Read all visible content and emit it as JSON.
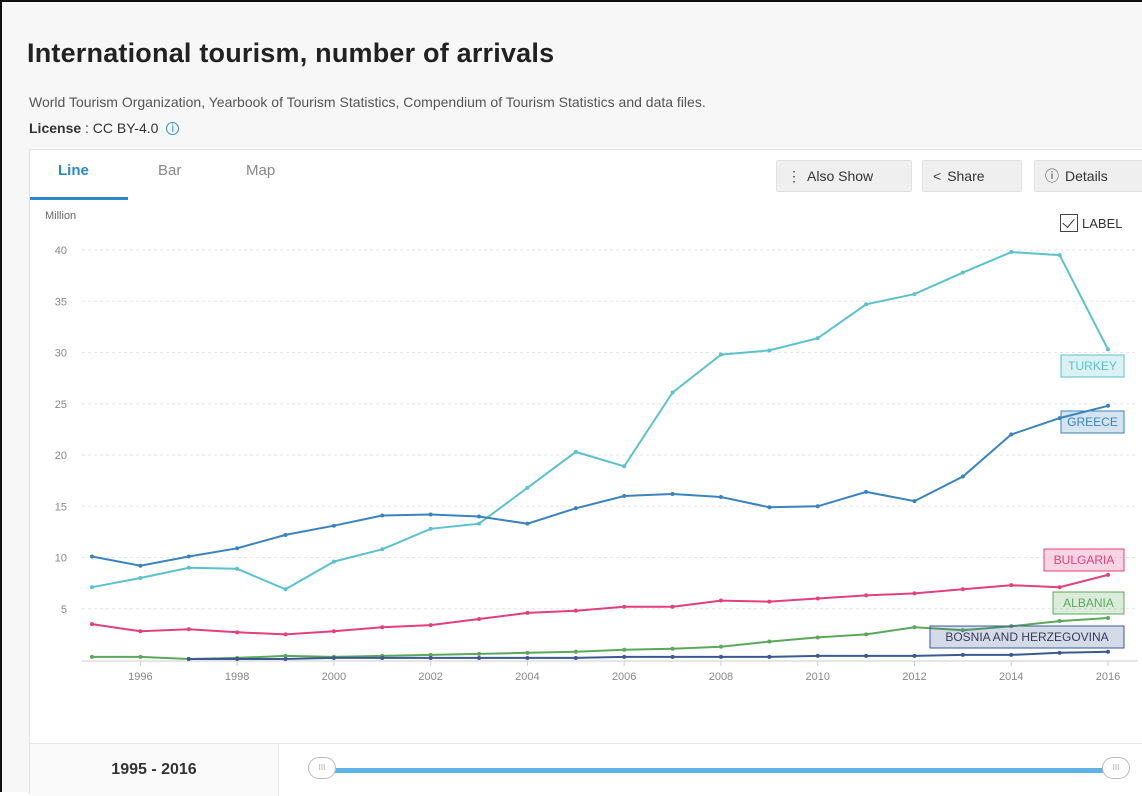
{
  "header": {
    "title": "International tourism, number of arrivals",
    "source": "World Tourism Organization, Yearbook of Tourism Statistics, Compendium of Tourism Statistics and data files.",
    "license_label": "License",
    "license_value": ": CC BY-4.0"
  },
  "tabs": [
    {
      "label": "Line",
      "active": true
    },
    {
      "label": "Bar",
      "active": false
    },
    {
      "label": "Map",
      "active": false
    }
  ],
  "toolbar": {
    "also_show": "Also Show",
    "share": "Share",
    "details": "Details",
    "label_toggle": "LABEL"
  },
  "range": {
    "label": "1995 - 2016",
    "start": 1995,
    "end": 2016
  },
  "colors": {
    "Turkey": "#5bc2cc",
    "Greece": "#3a83bd",
    "Bulgaria": "#e0407e",
    "Albania": "#5ba85b",
    "Bosnia": "#3b5a94",
    "accent": "#2c88c9"
  },
  "chart_data": {
    "type": "line",
    "ylabel": "Million",
    "ylim": [
      0,
      40
    ],
    "xlim": [
      1995,
      2016
    ],
    "yticks": [
      5,
      10,
      15,
      20,
      25,
      30,
      35,
      40
    ],
    "xticks": [
      1996,
      1998,
      2000,
      2002,
      2004,
      2006,
      2008,
      2010,
      2012,
      2014,
      2016
    ],
    "grid": true,
    "x": [
      1995,
      1996,
      1997,
      1998,
      1999,
      2000,
      2001,
      2002,
      2003,
      2004,
      2005,
      2006,
      2007,
      2008,
      2009,
      2010,
      2011,
      2012,
      2013,
      2014,
      2015,
      2016
    ],
    "series": [
      {
        "name": "TURKEY",
        "key": "Turkey",
        "values": [
          7.1,
          8.0,
          9.0,
          8.9,
          6.9,
          9.6,
          10.8,
          12.8,
          13.3,
          16.8,
          20.3,
          18.9,
          26.1,
          29.8,
          30.2,
          31.4,
          34.7,
          35.7,
          37.8,
          39.8,
          39.5,
          30.3
        ]
      },
      {
        "name": "GREECE",
        "key": "Greece",
        "values": [
          10.1,
          9.2,
          10.1,
          10.9,
          12.2,
          13.1,
          14.1,
          14.2,
          14.0,
          13.3,
          14.8,
          16.0,
          16.2,
          15.9,
          14.9,
          15.0,
          16.4,
          15.5,
          17.9,
          22.0,
          23.6,
          24.8
        ]
      },
      {
        "name": "BULGARIA",
        "key": "Bulgaria",
        "values": [
          3.5,
          2.8,
          3.0,
          2.7,
          2.5,
          2.8,
          3.2,
          3.4,
          4.0,
          4.6,
          4.8,
          5.2,
          5.2,
          5.8,
          5.7,
          6.0,
          6.3,
          6.5,
          6.9,
          7.3,
          7.1,
          8.3
        ]
      },
      {
        "name": "ALBANIA",
        "key": "Albania",
        "values": [
          0.3,
          0.3,
          0.1,
          0.2,
          0.4,
          0.3,
          0.4,
          0.5,
          0.6,
          0.7,
          0.8,
          1.0,
          1.1,
          1.3,
          1.8,
          2.2,
          2.5,
          3.2,
          2.9,
          3.3,
          3.8,
          4.1
        ]
      },
      {
        "name": "BOSNIA AND HERZEGOVINA",
        "key": "Bosnia",
        "values": [
          null,
          null,
          0.1,
          0.1,
          0.1,
          0.2,
          0.2,
          0.2,
          0.2,
          0.2,
          0.2,
          0.3,
          0.3,
          0.3,
          0.3,
          0.4,
          0.4,
          0.4,
          0.5,
          0.5,
          0.7,
          0.8
        ]
      }
    ]
  }
}
